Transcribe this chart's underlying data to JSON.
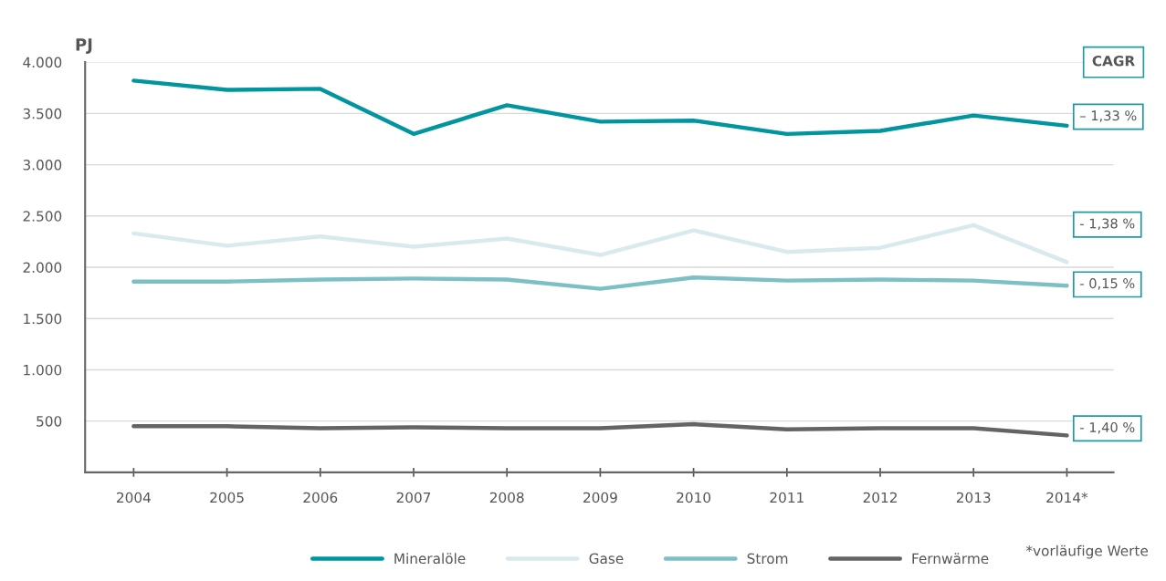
{
  "chart_data": {
    "type": "line",
    "ylabel": "PJ",
    "categories": [
      "2004",
      "2005",
      "2006",
      "2007",
      "2008",
      "2009",
      "2010",
      "2011",
      "2012",
      "2013",
      "2014*"
    ],
    "series": [
      {
        "name": "Mineralöle",
        "color": "#00959f",
        "values": [
          3820,
          3730,
          3740,
          3300,
          3580,
          3420,
          3430,
          3300,
          3330,
          3480,
          3380
        ]
      },
      {
        "name": "Gase",
        "color": "#d9eaef",
        "values": [
          2330,
          2210,
          2300,
          2200,
          2280,
          2120,
          2360,
          2150,
          2190,
          2410,
          2050
        ]
      },
      {
        "name": "Strom",
        "color": "#7cc0c6",
        "values": [
          1860,
          1860,
          1880,
          1890,
          1880,
          1790,
          1900,
          1870,
          1880,
          1870,
          1820
        ]
      },
      {
        "name": "Fernwärme",
        "color": "#646464",
        "values": [
          450,
          450,
          430,
          440,
          430,
          430,
          470,
          420,
          430,
          430,
          360
        ]
      }
    ],
    "ylim": [
      0,
      4000
    ],
    "yticks": [
      {
        "value": 500,
        "label": "500"
      },
      {
        "value": 1000,
        "label": "1.000"
      },
      {
        "value": 1500,
        "label": "1.500"
      },
      {
        "value": 2000,
        "label": "2.000"
      },
      {
        "value": 2500,
        "label": "2.500"
      },
      {
        "value": 3000,
        "label": "3.000"
      },
      {
        "value": 3500,
        "label": "3.500"
      },
      {
        "value": 4000,
        "label": "4.000"
      }
    ],
    "grid": "y",
    "legend": "bottom",
    "marker": "none",
    "line_style": "solid",
    "annotations": [
      "CAGR",
      "– 1,33 %",
      "- 1,38 %",
      "- 0,15 %",
      "- 1,40 %",
      "*vorläufige Werte"
    ]
  }
}
